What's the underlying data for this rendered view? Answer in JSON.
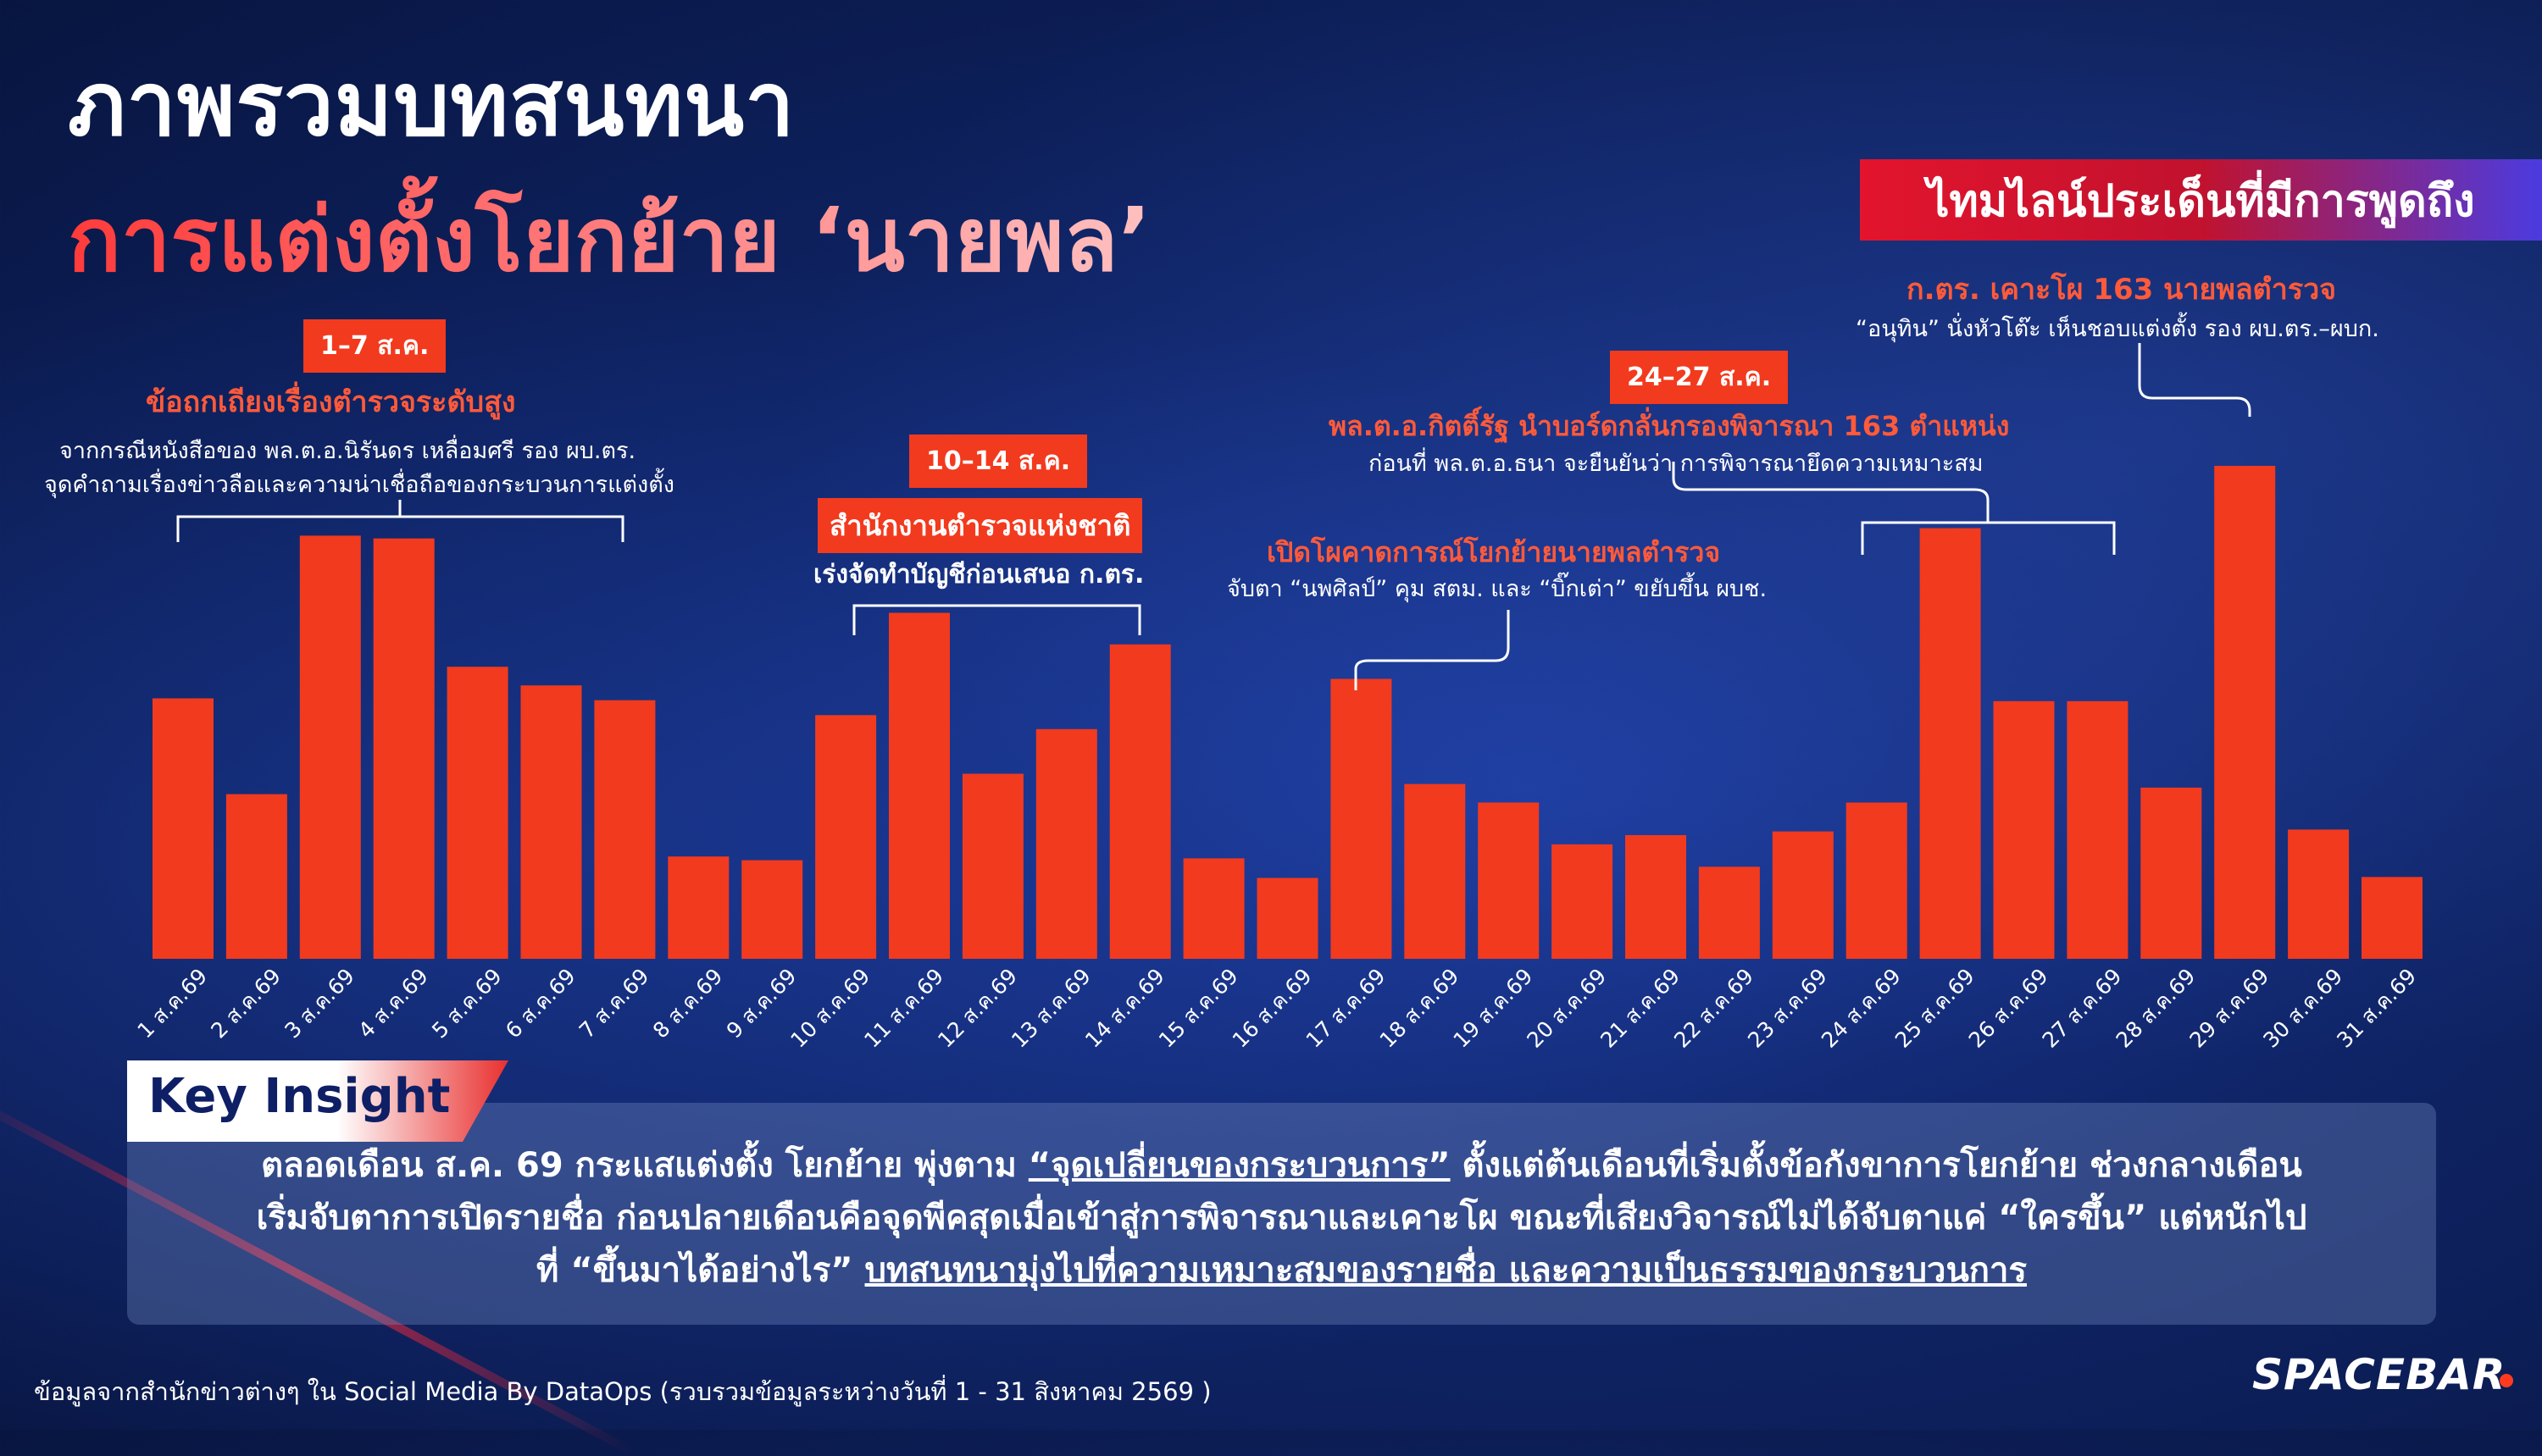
{
  "header": {
    "title_line1": "ภาพรวมบทสนทนา",
    "title_line2": "การแต่งตั้งโยกย้าย ‘นายพล’",
    "timeline_banner": "ไทมไลน์ประเด็นที่มีการพูดถึง"
  },
  "annotations": {
    "a1": {
      "date": "1–7 ส.ค.",
      "title": "ข้อถกเถียงเรื่องตำรวจระดับสูง",
      "desc1": "จากกรณีหนังสือของ พล.ต.อ.นิรันดร เหลื่อมศรี รอง ผบ.ตร.",
      "desc2": "จุดคำถามเรื่องข่าวลือและความน่าเชื่อถือของกระบวนการแต่งตั้ง"
    },
    "a2": {
      "date": "10–14 ส.ค.",
      "title": "สำนักงานตำรวจแห่งชาติ",
      "desc": "เร่งจัดทำบัญชีก่อนเสนอ ก.ตร."
    },
    "a3": {
      "title": "เปิดโผคาดการณ์โยกย้ายนายพลตำรวจ",
      "desc": "จับตา “นพศิลป์” คุม สตม. และ “บิ๊กเต่า” ขยับขึ้น ผบช."
    },
    "a4": {
      "date": "24–27 ส.ค.",
      "title": "พล.ต.อ.กิตติ์รัฐ นำบอร์ดกลั่นกรองพิจารณา 163 ตำแหน่ง",
      "desc": "ก่อนที่  พล.ต.อ.ธนา จะยืนยันว่า การพิจารณายึดความเหมาะสม"
    },
    "a5": {
      "title": "ก.ตร. เคาะโผ 163 นายพลตำรวจ",
      "desc": "“อนุทิน” นั่งหัวโต๊ะ เห็นชอบแต่งตั้ง รอง ผบ.ตร.–ผบก."
    }
  },
  "chart_data": {
    "type": "bar",
    "categories": [
      "1 ส.ค.69",
      "2 ส.ค.69",
      "3 ส.ค.69",
      "4 ส.ค.69",
      "5 ส.ค.69",
      "6 ส.ค.69",
      "7 ส.ค.69",
      "8 ส.ค.69",
      "9 ส.ค.69",
      "10 ส.ค.69",
      "11 ส.ค.69",
      "12 ส.ค.69",
      "13 ส.ค.69",
      "14 ส.ค.69",
      "15 ส.ค.69",
      "16 ส.ค.69",
      "17 ส.ค.69",
      "18 ส.ค.69",
      "19 ส.ค.69",
      "20 ส.ค.69",
      "21 ส.ค.69",
      "22 ส.ค.69",
      "23 ส.ค.69",
      "24 ส.ค.69",
      "25 ส.ค.69",
      "26 ส.ค.69",
      "27 ส.ค.69",
      "28 ส.ค.69",
      "29 ส.ค.69",
      "30 ส.ค.69",
      "31 ส.ค.69"
    ],
    "values": [
      280,
      177,
      455,
      452,
      314,
      294,
      278,
      110,
      106,
      262,
      372,
      199,
      247,
      338,
      108,
      87,
      301,
      188,
      168,
      123,
      133,
      99,
      137,
      168,
      463,
      277,
      277,
      184,
      530,
      139,
      88
    ],
    "color": "#f23a1e",
    "grid": false
  },
  "key_insight": {
    "label": "Key Insight",
    "line1_a": "ตลอดเดือน ส.ค. 69 กระแสแต่งตั้ง โยกย้าย พุ่งตาม ",
    "line1_u": "“จุดเปลี่ยนของกระบวนการ”",
    "line1_b": " ตั้งแต่ต้นเดือนที่เริ่มตั้งข้อกังขาการโยกย้าย ช่วงกลางเดือน",
    "line2": "เริ่มจับตาการเปิดรายชื่อ ก่อนปลายเดือนคือจุดพีคสุดเมื่อเข้าสู่การพิจารณาและเคาะโผ ขณะที่เสียงวิจารณ์ไม่ได้จับตาแค่ “ใครขึ้น” แต่หนักไป",
    "line3_a": "ที่ “ขึ้นมาได้อย่างไร” ",
    "line3_u": "บทสนทนามุ่งไปที่ความเหมาะสมของรายชื่อ และความเป็นธรรมของกระบวนการ"
  },
  "footer": {
    "source": "ข้อมูลจากสำนักข่าวต่างๆ ใน Social Media By DataOps (รวบรวมข้อมูลระหว่างวันที่  1 - 31 สิงหาคม 2569 )",
    "logo": "SPACEBAR"
  }
}
